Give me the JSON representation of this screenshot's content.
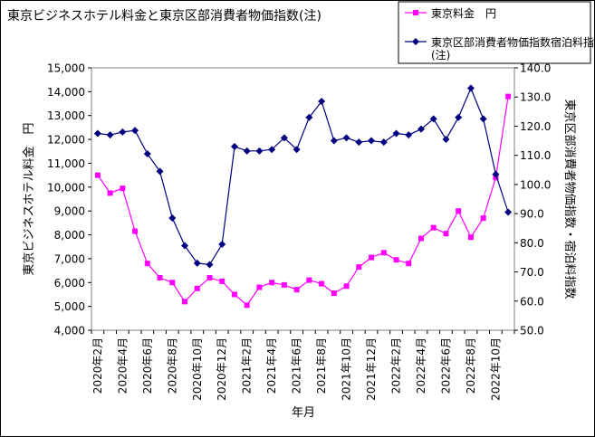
{
  "chart_data": {
    "type": "line",
    "title": "東京ビジネスホテル料金と東京区部消費者物価指数(注)",
    "xlabel": "年月",
    "ylabel_left": "東京ビジネスホテル料金　円",
    "ylabel_right": "東京区部消費者物価指数・宿泊料指数",
    "x": [
      "2020年2月",
      "2020年3月",
      "2020年4月",
      "2020年5月",
      "2020年6月",
      "2020年7月",
      "2020年8月",
      "2020年9月",
      "2020年10月",
      "2020年11月",
      "2020年12月",
      "2021年1月",
      "2021年2月",
      "2021年3月",
      "2021年4月",
      "2021年5月",
      "2021年6月",
      "2021年7月",
      "2021年8月",
      "2021年9月",
      "2021年10月",
      "2021年11月",
      "2021年12月",
      "2022年1月",
      "2022年2月",
      "2022年3月",
      "2022年4月",
      "2022年5月",
      "2022年6月",
      "2022年7月",
      "2022年8月",
      "2022年9月",
      "2022年10月",
      "2022年11月"
    ],
    "x_tick_labels": [
      "2020年2月",
      "2020年4月",
      "2020年6月",
      "2020年8月",
      "2020年10月",
      "2020年12月",
      "2021年2月",
      "2021年4月",
      "2021年6月",
      "2021年8月",
      "2021年10月",
      "2021年12月",
      "2022年2月",
      "2022年4月",
      "2022年6月",
      "2022年8月",
      "2022年10月"
    ],
    "ylim_left": [
      4000,
      15000
    ],
    "yticks_left": [
      "4,000",
      "5,000",
      "6,000",
      "7,000",
      "8,000",
      "9,000",
      "10,000",
      "11,000",
      "12,000",
      "13,000",
      "14,000",
      "15,000"
    ],
    "ylim_right": [
      50,
      140
    ],
    "yticks_right": [
      "50.0",
      "60.0",
      "70.0",
      "80.0",
      "90.0",
      "100.0",
      "110.0",
      "120.0",
      "130.0",
      "140.0"
    ],
    "grid": false,
    "legend_position": "top-right",
    "series": [
      {
        "name": "東京料金　円",
        "axis": "left",
        "color": "#ff00ff",
        "marker": "square",
        "values": [
          10500,
          9750,
          9950,
          8150,
          6800,
          6200,
          6000,
          5200,
          5750,
          6200,
          6050,
          5500,
          5050,
          5800,
          6000,
          5900,
          5700,
          6100,
          5950,
          5550,
          5850,
          6650,
          7050,
          7250,
          6950,
          6800,
          7850,
          8300,
          8050,
          9000,
          7900,
          8700,
          10400,
          13800
        ]
      },
      {
        "name": "東京区部消費者物価指数宿泊料指数(注)",
        "axis": "right",
        "color": "#000080",
        "marker": "diamond",
        "values": [
          117.5,
          117,
          118,
          118.5,
          110.5,
          104.5,
          88.5,
          79,
          73,
          72.5,
          79.5,
          113,
          111.5,
          111.5,
          112,
          116,
          112,
          123,
          128.5,
          115,
          116,
          114.5,
          115,
          114.5,
          117.5,
          117,
          119,
          122.5,
          115.5,
          123,
          133,
          122.5,
          103.5,
          90.5
        ]
      }
    ]
  }
}
